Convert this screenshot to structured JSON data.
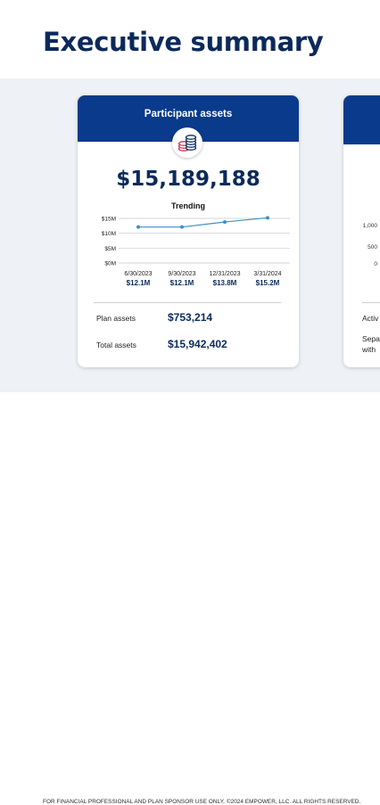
{
  "page": {
    "title": "Executive summary",
    "footer": "FOR FINANCIAL PROFESSIONAL AND PLAN SPONSOR USE ONLY. ©2024 EMPOWER, LLC. ALL RIGHTS RESERVED."
  },
  "colors": {
    "navy": "#0b2a5b",
    "header_blue": "#0a3a8c",
    "band": "#eef1f5",
    "line": "#3e8fc4",
    "coin_red": "#c8334a"
  },
  "card": {
    "title": "Participant assets",
    "icon": "coins-icon",
    "total": "$15,189,188",
    "trend_title": "Trending",
    "stats": [
      {
        "label": "Plan assets",
        "value": "$753,214"
      },
      {
        "label": "Total assets",
        "value": "$15,942,402"
      }
    ]
  },
  "chart_data": {
    "type": "line",
    "title": "Trending",
    "x": [
      "6/30/2023",
      "9/30/2023",
      "12/31/2023",
      "3/31/2024"
    ],
    "values": [
      12.1,
      12.1,
      13.8,
      15.2
    ],
    "value_labels": [
      "$12.1M",
      "$12.1M",
      "$13.8M",
      "$15.2M"
    ],
    "ylim": [
      0,
      15
    ],
    "yticks": [
      0,
      5,
      10,
      15
    ],
    "ytick_labels": [
      "$0M",
      "$5M",
      "$10M",
      "$15M"
    ],
    "grid": true
  },
  "card2": {
    "ticks": [
      "1,000",
      "500",
      "0"
    ],
    "lines": [
      "Activ",
      "Sepa",
      "with"
    ]
  }
}
